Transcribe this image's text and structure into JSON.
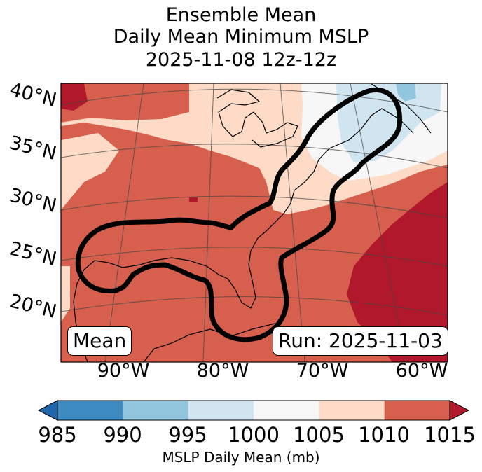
{
  "title": {
    "line1": "Ensemble Mean",
    "line2": "Daily Mean Minimum MSLP",
    "line3": "2025-11-08 12z-12z"
  },
  "map": {
    "latitude_labels": [
      "40°N",
      "35°N",
      "30°N",
      "25°N",
      "20°N"
    ],
    "longitude_labels": [
      "90°W",
      "80°W",
      "70°W",
      "60°W"
    ],
    "mean_box": "Mean",
    "run_box": "Run: 2025-11-03"
  },
  "colorbar": {
    "label": "MSLP Daily Mean (mb)",
    "ticks": [
      "985",
      "990",
      "995",
      "1000",
      "1005",
      "1010",
      "1015"
    ],
    "bins": [
      {
        "from": "985",
        "to": "990",
        "color": "#3d8bc1"
      },
      {
        "from": "990",
        "to": "995",
        "color": "#92c5de"
      },
      {
        "from": "995",
        "to": "1000",
        "color": "#d1e5f0"
      },
      {
        "from": "1000",
        "to": "1005",
        "color": "#f7f7f7"
      },
      {
        "from": "1005",
        "to": "1010",
        "color": "#fddbc7"
      },
      {
        "from": "1010",
        "to": "1015",
        "color": "#d6604d"
      }
    ],
    "under_color": "#2166ac",
    "over_color": "#b2182b"
  }
}
